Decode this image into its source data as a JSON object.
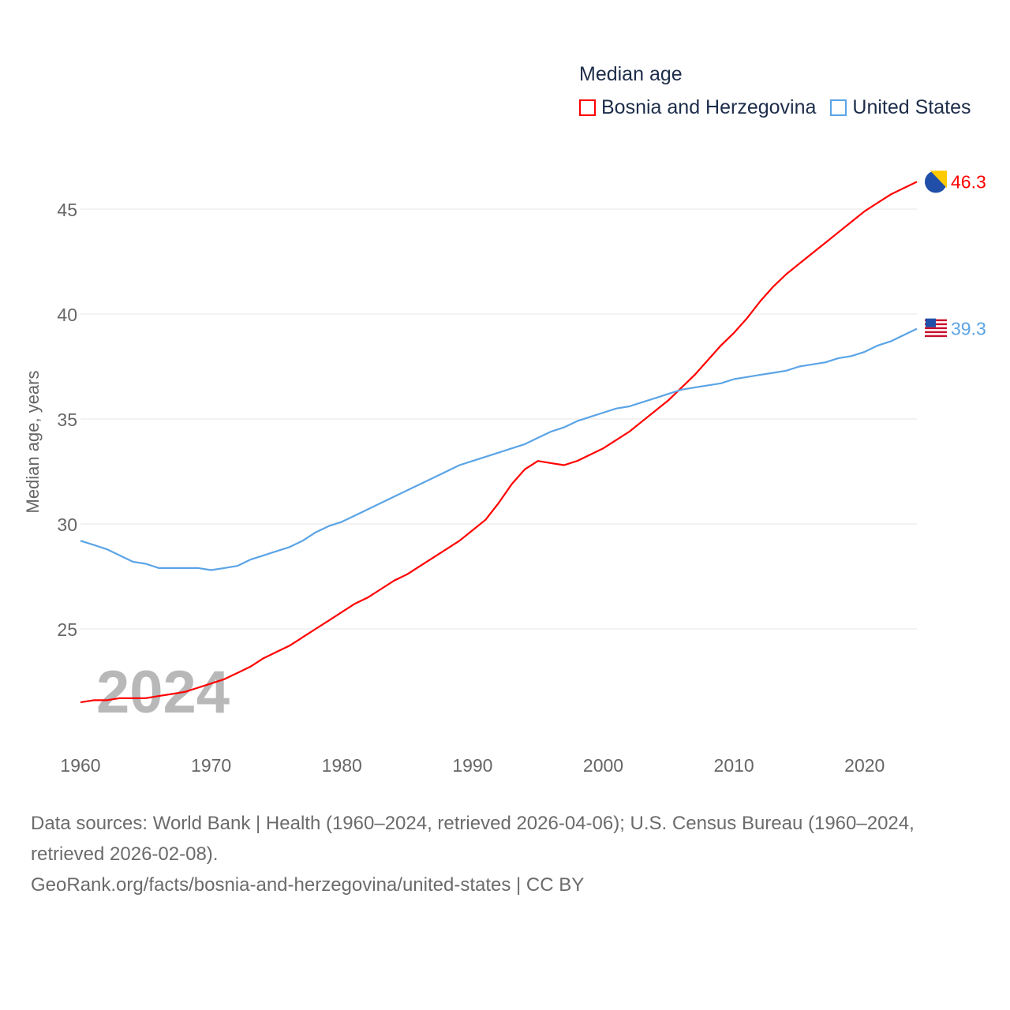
{
  "chart_data": {
    "type": "line",
    "title": "Median age",
    "ylabel": "Median age, years",
    "xlabel": "",
    "year_watermark": "2024",
    "xlim": [
      1960,
      2024
    ],
    "ylim": [
      20,
      47
    ],
    "x_ticks": [
      "1960",
      "1970",
      "1980",
      "1990",
      "2000",
      "2010",
      "2020"
    ],
    "y_ticks": [
      "25",
      "30",
      "35",
      "40",
      "45"
    ],
    "grid": true,
    "legend_position": "top-right",
    "x": [
      1960,
      1961,
      1962,
      1963,
      1964,
      1965,
      1966,
      1967,
      1968,
      1969,
      1970,
      1971,
      1972,
      1973,
      1974,
      1975,
      1976,
      1977,
      1978,
      1979,
      1980,
      1981,
      1982,
      1983,
      1984,
      1985,
      1986,
      1987,
      1988,
      1989,
      1990,
      1991,
      1992,
      1993,
      1994,
      1995,
      1996,
      1997,
      1998,
      1999,
      2000,
      2001,
      2002,
      2003,
      2004,
      2005,
      2006,
      2007,
      2008,
      2009,
      2010,
      2011,
      2012,
      2013,
      2014,
      2015,
      2016,
      2017,
      2018,
      2019,
      2020,
      2021,
      2022,
      2023,
      2024
    ],
    "series": [
      {
        "name": "Bosnia and Herzegovina",
        "color": "#ff0000",
        "end_label": "46.3",
        "flag": "bosnia-flag",
        "values": [
          21.5,
          21.6,
          21.6,
          21.7,
          21.7,
          21.7,
          21.8,
          21.9,
          22.0,
          22.2,
          22.4,
          22.6,
          22.9,
          23.2,
          23.6,
          23.9,
          24.2,
          24.6,
          25.0,
          25.4,
          25.8,
          26.2,
          26.5,
          26.9,
          27.3,
          27.6,
          28.0,
          28.4,
          28.8,
          29.2,
          29.7,
          30.2,
          31.0,
          31.9,
          32.6,
          33.0,
          32.9,
          32.8,
          33.0,
          33.3,
          33.6,
          34.0,
          34.4,
          34.9,
          35.4,
          35.9,
          36.5,
          37.1,
          37.8,
          38.5,
          39.1,
          39.8,
          40.6,
          41.3,
          41.9,
          42.4,
          42.9,
          43.4,
          43.9,
          44.4,
          44.9,
          45.3,
          45.7,
          46.0,
          46.3
        ]
      },
      {
        "name": "United States",
        "color": "#5ba4e6",
        "end_label": "39.3",
        "flag": "us-flag",
        "values": [
          29.2,
          29.0,
          28.8,
          28.5,
          28.2,
          28.1,
          27.9,
          27.9,
          27.9,
          27.9,
          27.8,
          27.9,
          28.0,
          28.3,
          28.5,
          28.7,
          28.9,
          29.2,
          29.6,
          29.9,
          30.1,
          30.4,
          30.7,
          31.0,
          31.3,
          31.6,
          31.9,
          32.2,
          32.5,
          32.8,
          33.0,
          33.2,
          33.4,
          33.6,
          33.8,
          34.1,
          34.4,
          34.6,
          34.9,
          35.1,
          35.3,
          35.5,
          35.6,
          35.8,
          36.0,
          36.2,
          36.4,
          36.5,
          36.6,
          36.7,
          36.9,
          37.0,
          37.1,
          37.2,
          37.3,
          37.5,
          37.6,
          37.7,
          37.9,
          38.0,
          38.2,
          38.5,
          38.7,
          39.0,
          39.3
        ]
      }
    ]
  },
  "footer": {
    "sources": "Data sources: World Bank | Health (1960–2024, retrieved 2026-04-06); U.S. Census Bureau (1960–2024, retrieved 2026-02-08).",
    "link": "GeoRank.org/facts/bosnia-and-herzegovina/united-states | CC BY"
  }
}
